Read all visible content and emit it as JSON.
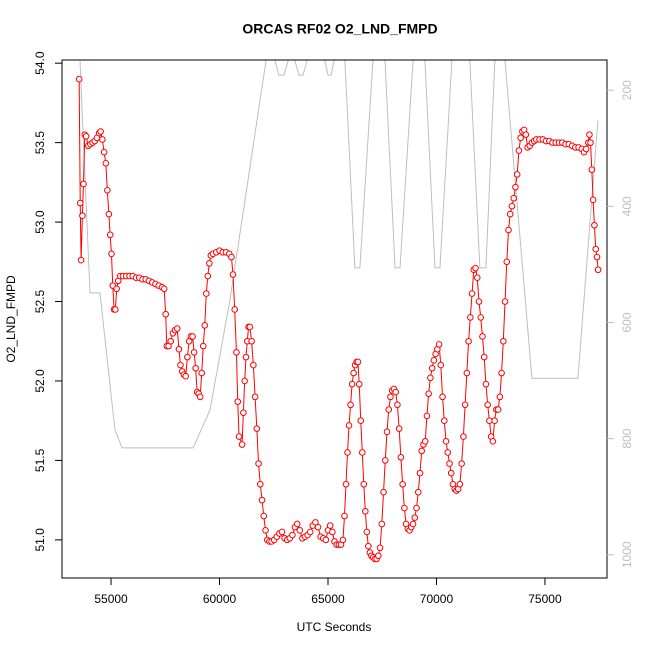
{
  "chart_data": {
    "type": "line",
    "title": "ORCAS RF02 O2_LND_FMPD",
    "xlabel": "UTC Seconds",
    "ylabel": "O2_LND_FMPD",
    "xlim": [
      52740,
      77860
    ],
    "ylim": [
      50.76,
      54.02
    ],
    "y2lim": [
      1040,
      148
    ],
    "xticks": [
      55000,
      60000,
      65000,
      70000,
      75000
    ],
    "yticks": [
      {
        "value": 51,
        "label": "51.0"
      },
      51.5,
      {
        "value": 52,
        "label": "52.0"
      },
      52.5,
      {
        "value": 53,
        "label": "53.0"
      },
      53.5,
      {
        "value": 54,
        "label": "54.0"
      }
    ],
    "y2ticks": [
      200,
      400,
      600,
      800,
      1000
    ],
    "y2color": "#bebebe",
    "series": [
      {
        "color": "#ff0000",
        "markers": true,
        "x": [
          53530,
          53580,
          53620,
          53680,
          53730,
          53790,
          53850,
          53950,
          54050,
          54150,
          54250,
          54350,
          54450,
          54520,
          54600,
          54680,
          54760,
          54830,
          54900,
          54960,
          55020,
          55080,
          55140,
          55200,
          55260,
          55330,
          55420,
          55550,
          55700,
          55850,
          56000,
          56150,
          56300,
          56450,
          56600,
          56750,
          56900,
          57050,
          57200,
          57350,
          57450,
          57520,
          57570,
          57650,
          57750,
          57850,
          57950,
          58050,
          58130,
          58200,
          58280,
          58360,
          58440,
          58520,
          58600,
          58680,
          58760,
          58830,
          58900,
          58970,
          59040,
          59110,
          59180,
          59250,
          59320,
          59390,
          59460,
          59530,
          59600,
          59700,
          59850,
          60000,
          60150,
          60300,
          60450,
          60550,
          60620,
          60700,
          60780,
          60840,
          60900,
          61040,
          61100,
          61160,
          61220,
          61280,
          61340,
          61400,
          61480,
          61560,
          61640,
          61720,
          61800,
          61880,
          61960,
          62040,
          62120,
          62200,
          62300,
          62400,
          62520,
          62640,
          62760,
          62880,
          63000,
          63120,
          63240,
          63360,
          63480,
          63580,
          63700,
          63820,
          63940,
          64060,
          64180,
          64300,
          64420,
          64540,
          64660,
          64780,
          64900,
          65000,
          65100,
          65200,
          65300,
          65400,
          65500,
          65600,
          65690,
          65760,
          65830,
          65900,
          65970,
          66040,
          66110,
          66180,
          66250,
          66320,
          66380,
          66440,
          66510,
          66580,
          66650,
          66720,
          66790,
          66860,
          66930,
          67000,
          67080,
          67160,
          67240,
          67320,
          67400,
          67480,
          67560,
          67640,
          67720,
          67800,
          67880,
          67960,
          68040,
          68120,
          68200,
          68280,
          68360,
          68440,
          68520,
          68600,
          68680,
          68760,
          68840,
          68920,
          69000,
          69080,
          69160,
          69240,
          69320,
          69400,
          69480,
          69560,
          69640,
          69720,
          69800,
          69880,
          69960,
          70040,
          70120,
          70200,
          70280,
          70360,
          70440,
          70520,
          70600,
          70680,
          70760,
          70840,
          70920,
          71000,
          71080,
          71160,
          71240,
          71320,
          71400,
          71480,
          71560,
          71640,
          71720,
          71800,
          71880,
          71960,
          72040,
          72120,
          72200,
          72280,
          72360,
          72440,
          72520,
          72600,
          72680,
          72760,
          72840,
          72920,
          73000,
          73080,
          73160,
          73240,
          73320,
          73400,
          73480,
          73560,
          73640,
          73720,
          73800,
          73880,
          73960,
          74040,
          74120,
          74200,
          74300,
          74400,
          74500,
          74600,
          74750,
          74900,
          75050,
          75200,
          75350,
          75500,
          75650,
          75800,
          75950,
          76100,
          76250,
          76400,
          76550,
          76700,
          76800,
          76900,
          77000,
          77050,
          77100,
          77160,
          77220,
          77280,
          77340,
          77400,
          77450
        ],
        "values": [
          53.9,
          53.12,
          52.76,
          53.04,
          53.24,
          53.55,
          53.54,
          53.48,
          53.49,
          53.5,
          53.51,
          53.53,
          53.56,
          53.57,
          53.52,
          53.44,
          53.37,
          53.2,
          53.05,
          52.92,
          52.8,
          52.6,
          52.45,
          52.45,
          52.58,
          52.63,
          52.66,
          52.66,
          52.66,
          52.66,
          52.66,
          52.65,
          52.65,
          52.64,
          52.64,
          52.63,
          52.62,
          52.61,
          52.6,
          52.59,
          52.58,
          52.42,
          52.22,
          52.22,
          52.25,
          52.3,
          52.32,
          52.33,
          52.2,
          52.1,
          52.06,
          52.04,
          52.03,
          52.15,
          52.25,
          52.28,
          52.28,
          52.18,
          52.08,
          51.93,
          51.92,
          51.9,
          52.05,
          52.22,
          52.35,
          52.55,
          52.66,
          52.74,
          52.79,
          52.8,
          52.81,
          52.82,
          52.81,
          52.81,
          52.8,
          52.78,
          52.67,
          52.45,
          52.18,
          51.87,
          51.65,
          51.6,
          51.8,
          52.0,
          52.15,
          52.25,
          52.34,
          52.34,
          52.25,
          52.1,
          51.9,
          51.7,
          51.48,
          51.35,
          51.25,
          51.15,
          51.06,
          51.0,
          50.99,
          50.99,
          51.0,
          51.02,
          51.04,
          51.05,
          51.01,
          51.0,
          51.01,
          51.03,
          51.08,
          51.1,
          51.06,
          51.01,
          51.02,
          51.03,
          51.05,
          51.09,
          51.11,
          51.08,
          51.02,
          51.01,
          51.0,
          51.06,
          51.09,
          51.05,
          50.99,
          50.97,
          50.97,
          50.97,
          51.0,
          51.15,
          51.35,
          51.55,
          51.72,
          51.85,
          51.98,
          52.05,
          52.1,
          52.12,
          52.12,
          51.98,
          51.75,
          51.55,
          51.35,
          51.18,
          51.05,
          50.96,
          50.92,
          50.9,
          50.89,
          50.88,
          50.88,
          50.9,
          50.95,
          51.1,
          51.3,
          51.5,
          51.68,
          51.82,
          51.9,
          51.94,
          51.95,
          51.93,
          51.85,
          51.7,
          51.52,
          51.35,
          51.2,
          51.1,
          51.07,
          51.06,
          51.08,
          51.1,
          51.14,
          51.2,
          51.3,
          51.42,
          51.56,
          51.6,
          51.62,
          51.78,
          51.92,
          52.02,
          52.08,
          52.13,
          52.17,
          52.2,
          52.23,
          52.1,
          51.9,
          51.75,
          51.62,
          51.55,
          51.48,
          51.42,
          51.35,
          51.32,
          51.31,
          51.32,
          51.35,
          51.48,
          51.65,
          51.85,
          52.05,
          52.25,
          52.4,
          52.55,
          52.7,
          52.71,
          52.65,
          52.5,
          52.4,
          52.28,
          52.15,
          51.98,
          51.85,
          51.75,
          51.65,
          51.62,
          51.75,
          51.82,
          51.82,
          51.9,
          52.05,
          52.25,
          52.5,
          52.75,
          52.95,
          53.05,
          53.1,
          53.15,
          53.22,
          53.3,
          53.45,
          53.53,
          53.57,
          53.58,
          53.55,
          53.47,
          53.48,
          53.5,
          53.51,
          53.52,
          53.52,
          53.52,
          53.51,
          53.51,
          53.5,
          53.5,
          53.5,
          53.5,
          53.49,
          53.49,
          53.48,
          53.47,
          53.47,
          53.46,
          53.44,
          53.46,
          53.5,
          53.55,
          53.5,
          53.33,
          53.14,
          52.98,
          52.83,
          52.78,
          52.7
        ]
      },
      {
        "color": "#bebebe",
        "axis": "y2",
        "markers": false,
        "x": [
          53570,
          54030,
          54120,
          54490,
          55180,
          55510,
          58780,
          59560,
          60480,
          61870,
          62140,
          62350,
          62560,
          62740,
          62970,
          63160,
          63320,
          63480,
          63660,
          63850,
          64030,
          64450,
          64860,
          65000,
          65140,
          65280,
          65530,
          65780,
          66240,
          66470,
          67070,
          67350,
          67630,
          68090,
          68320,
          68920,
          69200,
          69470,
          69930,
          70160,
          70710,
          71120,
          71540,
          72000,
          72280,
          72690,
          72920,
          73160,
          74400,
          76520,
          77440
        ],
        "values": [
          150,
          549,
          549,
          549,
          785,
          816,
          816,
          751,
          561,
          217,
          150,
          120,
          150,
          174,
          174,
          150,
          120,
          150,
          174,
          174,
          150,
          120,
          150,
          174,
          174,
          150,
          120,
          150,
          506,
          506,
          150,
          120,
          150,
          506,
          506,
          150,
          120,
          150,
          506,
          506,
          150,
          120,
          150,
          506,
          506,
          150,
          120,
          150,
          696,
          696,
          252
        ]
      }
    ]
  }
}
